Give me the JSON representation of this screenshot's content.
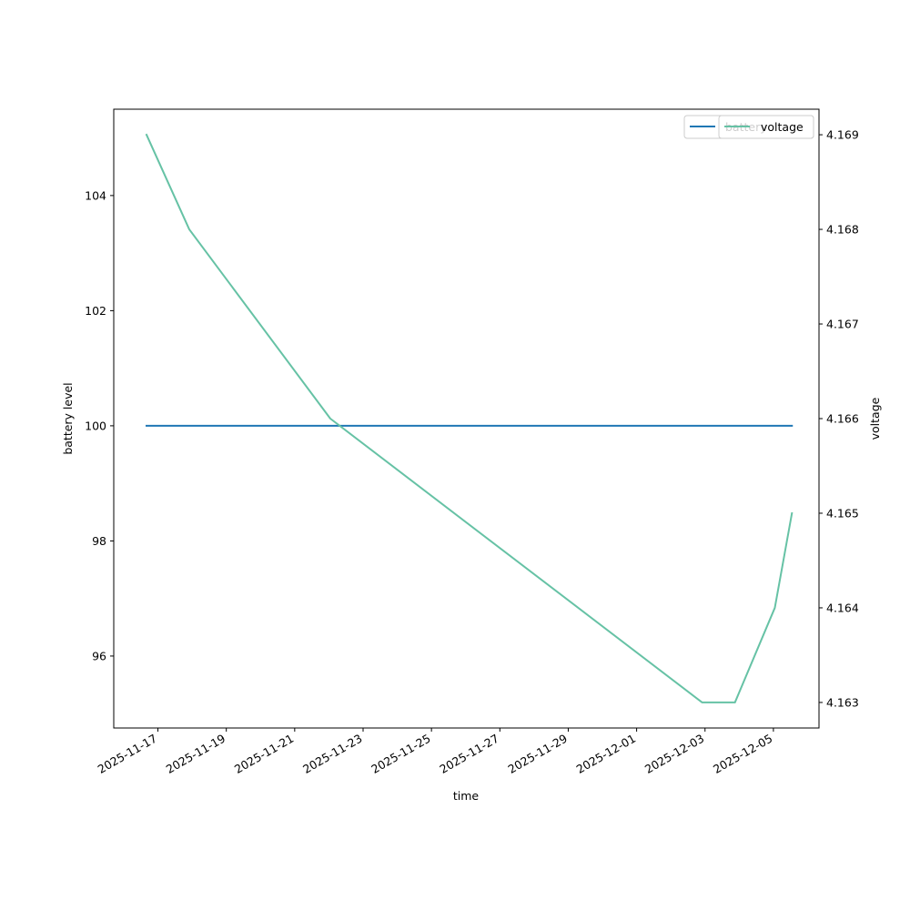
{
  "chart_data": {
    "type": "line",
    "xlabel": "time",
    "ylabel_left": "battery level",
    "ylabel_right": "voltage",
    "x_ticks": [
      "2025-11-17",
      "2025-11-19",
      "2025-11-21",
      "2025-11-23",
      "2025-11-25",
      "2025-11-27",
      "2025-11-29",
      "2025-12-01",
      "2025-12-03",
      "2025-12-05"
    ],
    "y_left_ticks": [
      96,
      98,
      100,
      102,
      104
    ],
    "y_right_ticks": [
      "4.163",
      "4.164",
      "4.165",
      "4.166",
      "4.167",
      "4.168",
      "4.169"
    ],
    "x_range": [
      "2025-11-15T17:00",
      "2025-12-06T08:00"
    ],
    "y_left_range": [
      94.75,
      105.5
    ],
    "y_right_range": [
      4.16273,
      4.16927
    ],
    "grid": false,
    "series": [
      {
        "name": "battery",
        "axis": "left",
        "color": "#1f77b4",
        "points": [
          {
            "x": "2025-11-16T16:00",
            "y": 100
          },
          {
            "x": "2025-12-05T13:00",
            "y": 100
          }
        ]
      },
      {
        "name": "voltage",
        "axis": "right",
        "color": "#66c2a5",
        "points": [
          {
            "x": "2025-11-16T16:00",
            "y": 4.169
          },
          {
            "x": "2025-11-17T22:00",
            "y": 4.168
          },
          {
            "x": "2025-11-22T01:00",
            "y": 4.166
          },
          {
            "x": "2025-12-02T22:00",
            "y": 4.163
          },
          {
            "x": "2025-12-03T21:00",
            "y": 4.163
          },
          {
            "x": "2025-12-05T01:00",
            "y": 4.164
          },
          {
            "x": "2025-12-05T13:00",
            "y": 4.165
          }
        ]
      }
    ],
    "legends": [
      {
        "placement": "top-right",
        "entries": [
          "battery"
        ]
      },
      {
        "placement": "top-right",
        "entries": [
          "voltage"
        ]
      }
    ]
  }
}
